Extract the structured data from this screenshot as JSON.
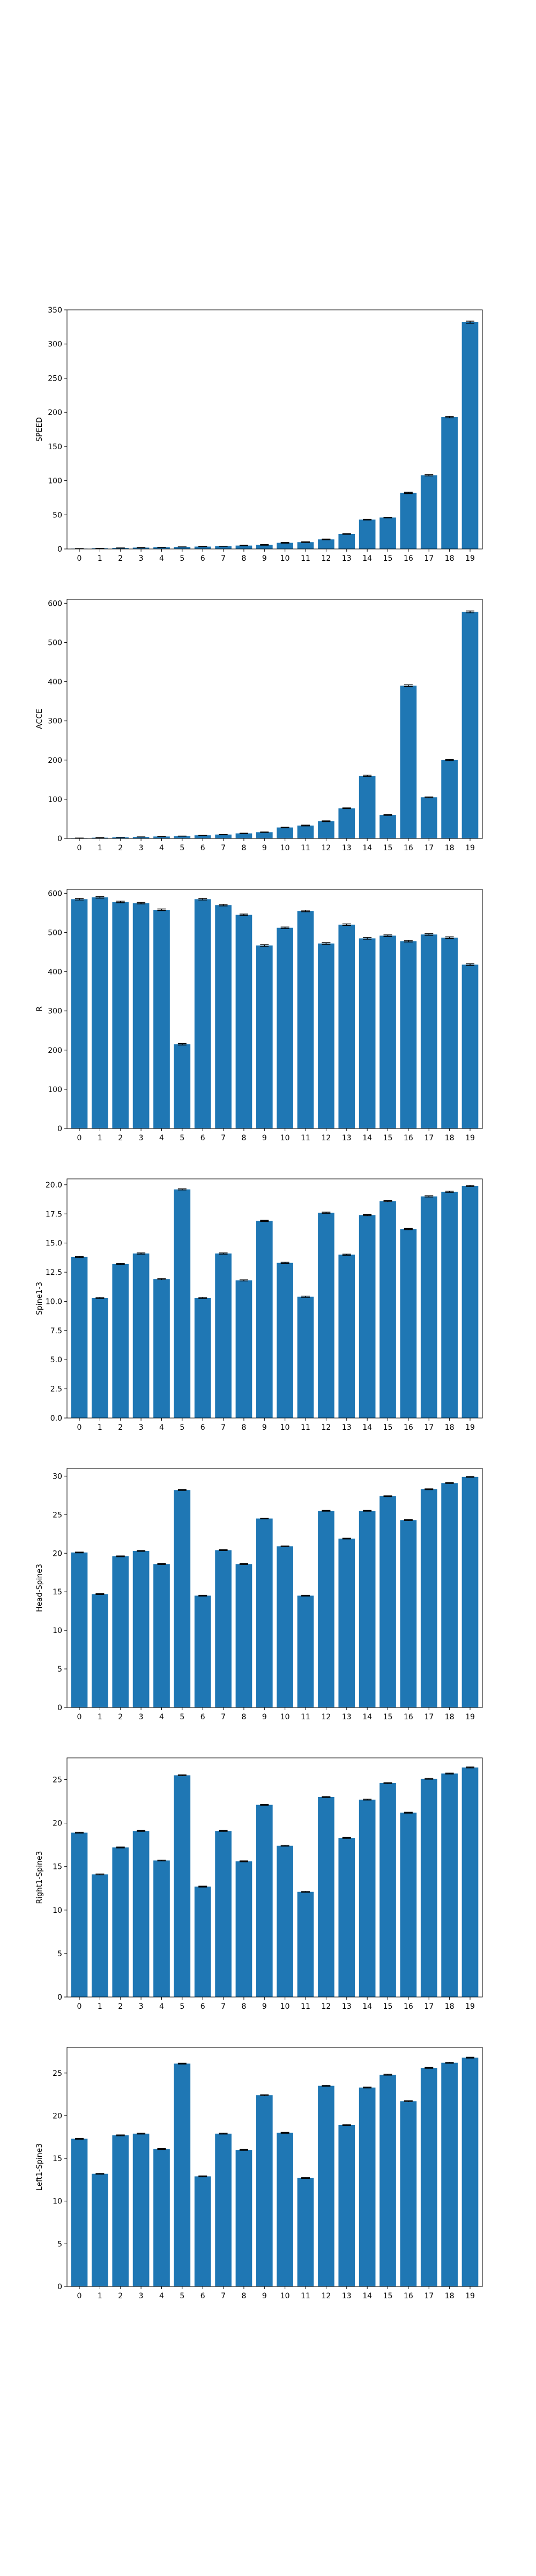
{
  "chart_data": [
    {
      "type": "bar",
      "ylabel": "SPEED",
      "categories": [
        "0",
        "1",
        "2",
        "3",
        "4",
        "5",
        "6",
        "7",
        "8",
        "9",
        "10",
        "11",
        "12",
        "13",
        "14",
        "15",
        "16",
        "17",
        "18",
        "19"
      ],
      "values": [
        0.5,
        1,
        1.5,
        2,
        2.5,
        3,
        3.5,
        4,
        5,
        6,
        9,
        10,
        14,
        22,
        43,
        46,
        82,
        108,
        193,
        332
      ],
      "errors": [
        0,
        0,
        0,
        0,
        0,
        0,
        0,
        0,
        0.5,
        0.5,
        0.5,
        0.5,
        0.5,
        0.5,
        0.5,
        0.5,
        1,
        1,
        1,
        1.5
      ],
      "ylim": [
        0,
        350
      ],
      "yticks": [
        0,
        50,
        100,
        150,
        200,
        250,
        300,
        350
      ],
      "color": "#1f77b4"
    },
    {
      "type": "bar",
      "ylabel": "ACCE",
      "categories": [
        "0",
        "1",
        "2",
        "3",
        "4",
        "5",
        "6",
        "7",
        "8",
        "9",
        "10",
        "11",
        "12",
        "13",
        "14",
        "15",
        "16",
        "17",
        "18",
        "19"
      ],
      "values": [
        1,
        2,
        3,
        4,
        5,
        6,
        8,
        10,
        13,
        16,
        28,
        33,
        44,
        77,
        160,
        60,
        390,
        105,
        200,
        578
      ],
      "errors": [
        0,
        0,
        0,
        0,
        0,
        0,
        0,
        0,
        0.5,
        0.5,
        1,
        1,
        1,
        1,
        1.5,
        1,
        2,
        1,
        1.5,
        2.5
      ],
      "ylim": [
        0,
        610
      ],
      "yticks": [
        0,
        100,
        200,
        300,
        400,
        500,
        600
      ],
      "color": "#1f77b4"
    },
    {
      "type": "bar",
      "ylabel": "R",
      "categories": [
        "0",
        "1",
        "2",
        "3",
        "4",
        "5",
        "6",
        "7",
        "8",
        "9",
        "10",
        "11",
        "12",
        "13",
        "14",
        "15",
        "16",
        "17",
        "18",
        "19"
      ],
      "values": [
        585,
        590,
        578,
        575,
        558,
        215,
        585,
        570,
        545,
        467,
        512,
        555,
        472,
        520,
        485,
        492,
        478,
        495,
        487,
        418
      ],
      "errors": [
        2,
        2,
        2,
        2,
        2,
        2,
        2,
        2,
        2,
        2,
        2,
        2,
        2,
        2,
        2,
        2,
        2,
        2,
        2,
        2
      ],
      "ylim": [
        0,
        610
      ],
      "yticks": [
        0,
        100,
        200,
        300,
        400,
        500,
        600
      ],
      "color": "#1f77b4"
    },
    {
      "type": "bar",
      "ylabel": "Spine1-3",
      "categories": [
        "0",
        "1",
        "2",
        "3",
        "4",
        "5",
        "6",
        "7",
        "8",
        "9",
        "10",
        "11",
        "12",
        "13",
        "14",
        "15",
        "16",
        "17",
        "18",
        "19"
      ],
      "values": [
        13.8,
        10.3,
        13.2,
        14.1,
        11.9,
        19.6,
        10.3,
        14.1,
        11.8,
        16.9,
        13.3,
        10.4,
        17.6,
        14.0,
        17.4,
        18.6,
        16.2,
        19.0,
        19.4,
        19.9
      ],
      "errors": [
        0.05,
        0.05,
        0.05,
        0.05,
        0.05,
        0.05,
        0.05,
        0.05,
        0.05,
        0.05,
        0.05,
        0.05,
        0.05,
        0.05,
        0.05,
        0.05,
        0.05,
        0.05,
        0.05,
        0.05
      ],
      "ylim": [
        0,
        20.5
      ],
      "yticks": [
        0.0,
        2.5,
        5.0,
        7.5,
        10.0,
        12.5,
        15.0,
        17.5,
        20.0
      ],
      "ytick_labels": [
        "0.0",
        "2.5",
        "5.0",
        "7.5",
        "10.0",
        "12.5",
        "15.0",
        "17.5",
        "20.0"
      ],
      "color": "#1f77b4"
    },
    {
      "type": "bar",
      "ylabel": "Head-Spine3",
      "categories": [
        "0",
        "1",
        "2",
        "3",
        "4",
        "5",
        "6",
        "7",
        "8",
        "9",
        "10",
        "11",
        "12",
        "13",
        "14",
        "15",
        "16",
        "17",
        "18",
        "19"
      ],
      "values": [
        20.1,
        14.7,
        19.6,
        20.3,
        18.6,
        28.2,
        14.5,
        20.4,
        18.6,
        24.5,
        20.9,
        14.5,
        25.5,
        21.9,
        25.5,
        27.4,
        24.3,
        28.3,
        29.1,
        29.9
      ],
      "errors": [
        0.05,
        0.05,
        0.05,
        0.05,
        0.05,
        0.05,
        0.05,
        0.05,
        0.05,
        0.05,
        0.05,
        0.05,
        0.05,
        0.05,
        0.05,
        0.05,
        0.05,
        0.05,
        0.05,
        0.05
      ],
      "ylim": [
        0,
        31
      ],
      "yticks": [
        0,
        5,
        10,
        15,
        20,
        25,
        30
      ],
      "color": "#1f77b4"
    },
    {
      "type": "bar",
      "ylabel": "Right1-Spine3",
      "categories": [
        "0",
        "1",
        "2",
        "3",
        "4",
        "5",
        "6",
        "7",
        "8",
        "9",
        "10",
        "11",
        "12",
        "13",
        "14",
        "15",
        "16",
        "17",
        "18",
        "19"
      ],
      "values": [
        18.9,
        14.1,
        17.2,
        19.1,
        15.7,
        25.5,
        12.7,
        19.1,
        15.6,
        22.1,
        17.4,
        12.1,
        23.0,
        18.3,
        22.7,
        24.6,
        21.2,
        25.1,
        25.7,
        26.4
      ],
      "errors": [
        0.05,
        0.05,
        0.05,
        0.05,
        0.05,
        0.05,
        0.05,
        0.05,
        0.05,
        0.05,
        0.05,
        0.05,
        0.05,
        0.05,
        0.05,
        0.05,
        0.05,
        0.05,
        0.05,
        0.05
      ],
      "ylim": [
        0,
        27.5
      ],
      "yticks": [
        0,
        5,
        10,
        15,
        20,
        25
      ],
      "color": "#1f77b4"
    },
    {
      "type": "bar",
      "ylabel": "Left1-Spine3",
      "categories": [
        "0",
        "1",
        "2",
        "3",
        "4",
        "5",
        "6",
        "7",
        "8",
        "9",
        "10",
        "11",
        "12",
        "13",
        "14",
        "15",
        "16",
        "17",
        "18",
        "19"
      ],
      "values": [
        17.3,
        13.2,
        17.7,
        17.9,
        16.1,
        26.1,
        12.9,
        17.9,
        16.0,
        22.4,
        18.0,
        12.7,
        23.5,
        18.9,
        23.3,
        24.8,
        21.7,
        25.6,
        26.2,
        26.8
      ],
      "errors": [
        0.05,
        0.05,
        0.05,
        0.05,
        0.05,
        0.05,
        0.05,
        0.05,
        0.05,
        0.05,
        0.05,
        0.05,
        0.05,
        0.05,
        0.05,
        0.05,
        0.05,
        0.05,
        0.05,
        0.05
      ],
      "ylim": [
        0,
        28
      ],
      "yticks": [
        0,
        5,
        10,
        15,
        20,
        25
      ],
      "color": "#1f77b4"
    }
  ]
}
